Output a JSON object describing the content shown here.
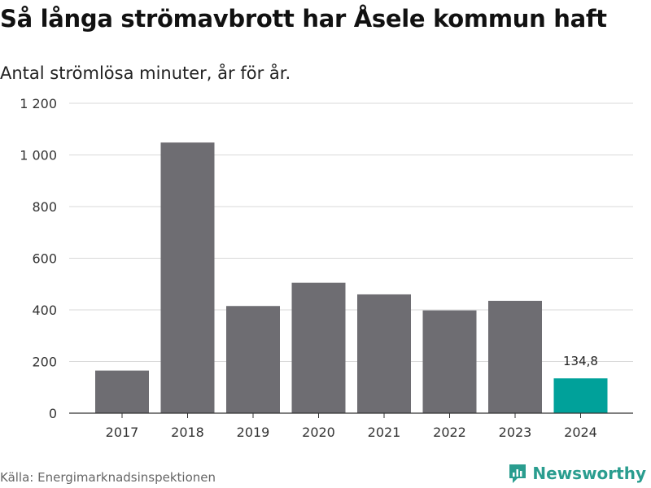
{
  "title": "Så långa strömavbrott har Åsele kommun haft",
  "subtitle": "Antal strömlösa minuter, år för år.",
  "source": "Källa: Energimarknadsinspektionen",
  "brand": {
    "name": "Newsworthy",
    "icon": "newsworthy-logo-icon",
    "color": "#2a9d8f"
  },
  "colors": {
    "bar": "#6e6d72",
    "highlight": "#00a19a",
    "grid": "#d9d9d9",
    "axis": "#333333"
  },
  "chart_data": {
    "type": "bar",
    "title": "Så långa strömavbrott har Åsele kommun haft",
    "subtitle": "Antal strömlösa minuter, år för år.",
    "xlabel": "",
    "ylabel": "",
    "categories": [
      "2017",
      "2018",
      "2019",
      "2020",
      "2021",
      "2022",
      "2023",
      "2024"
    ],
    "values": [
      165,
      1048,
      415,
      505,
      460,
      398,
      435,
      134.8
    ],
    "highlight_index": 7,
    "data_labels": [
      {
        "index": 7,
        "text": "134,8"
      }
    ],
    "ylim": [
      0,
      1200
    ],
    "yticks": [
      0,
      200,
      400,
      600,
      800,
      1000,
      1200
    ],
    "ytick_labels": [
      "0",
      "200",
      "400",
      "600",
      "800",
      "1 000",
      "1 200"
    ],
    "grid": true,
    "legend": "none"
  }
}
